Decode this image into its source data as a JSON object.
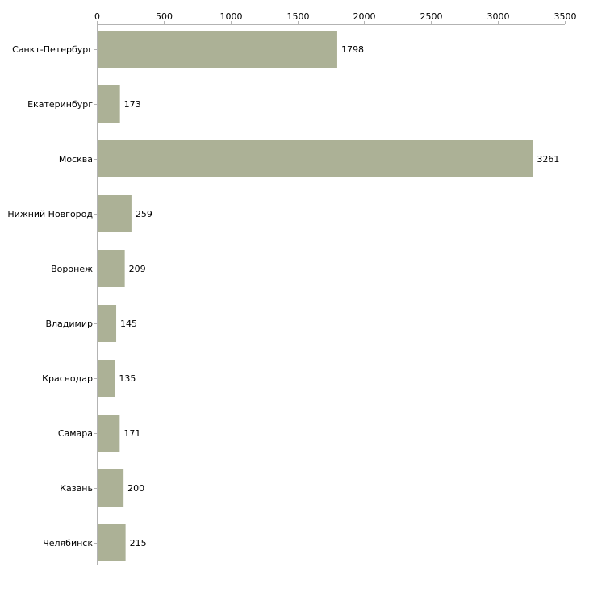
{
  "chart_data": {
    "type": "bar",
    "orientation": "horizontal",
    "title": "",
    "xlabel": "",
    "ylabel": "",
    "categories": [
      "Санкт-Петербург",
      "Екатеринбург",
      "Москва",
      "Нижний Новгород",
      "Воронеж",
      "Владимир",
      "Краснодар",
      "Самара",
      "Казань",
      "Челябинск"
    ],
    "values": [
      1798,
      173,
      3261,
      259,
      209,
      145,
      135,
      171,
      200,
      215
    ],
    "xlim": [
      0,
      3500
    ],
    "ticks": [
      "0",
      "500",
      "1000",
      "1500",
      "2000",
      "2500",
      "3000",
      "3500"
    ],
    "axis_position": "top",
    "grid": false,
    "bar_color": "#acb196",
    "axis_color": "#b3b3b3",
    "text_color": "#000000"
  }
}
